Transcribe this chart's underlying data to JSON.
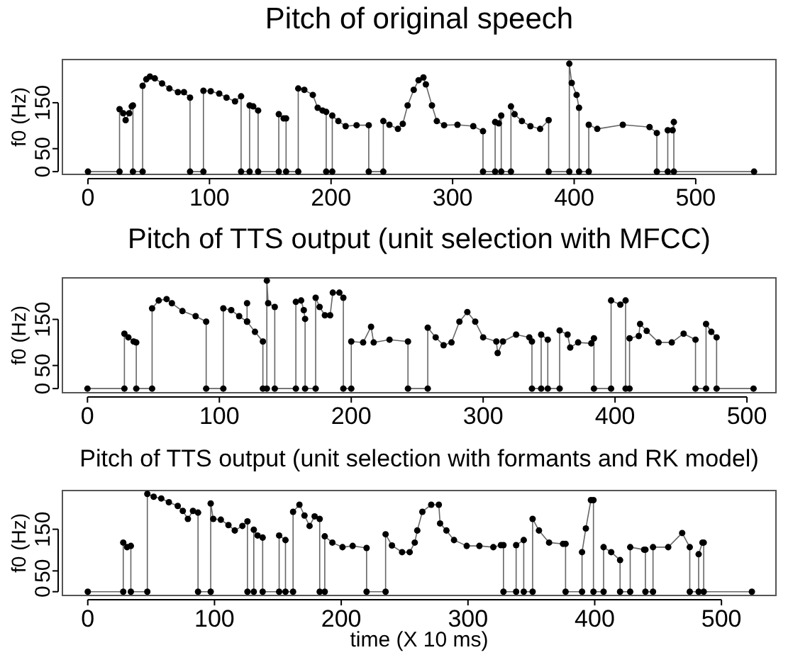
{
  "chart_data": [
    {
      "type": "line",
      "title": "Pitch of original speech",
      "ylabel": "f0 (Hz)",
      "marker": "circle",
      "line_style": "solid",
      "grid": false,
      "xlim": [
        -21,
        566
      ],
      "xticks": [
        0,
        100,
        200,
        300,
        400,
        500
      ],
      "ylim": [
        -6,
        244
      ],
      "yticks": [
        0,
        50,
        150
      ],
      "series": [
        {
          "color": "#000000",
          "x": [
            0,
            26,
            26,
            29,
            31,
            34,
            36,
            37,
            37,
            45,
            45,
            48,
            51,
            55,
            61,
            67,
            74,
            79,
            84,
            84,
            95,
            95,
            101,
            108,
            114,
            121,
            126,
            126,
            133,
            133,
            136,
            140,
            140,
            157,
            157,
            161,
            163,
            163,
            173,
            173,
            178,
            185,
            189,
            193,
            196,
            196,
            201,
            201,
            206,
            212,
            221,
            231,
            231,
            243,
            243,
            248,
            255,
            259,
            263,
            268,
            272,
            276,
            278,
            283,
            287,
            293,
            304,
            317,
            325,
            325,
            335,
            335,
            338,
            340,
            340,
            348,
            348,
            351,
            357,
            364,
            372,
            379,
            379,
            396,
            396,
            398,
            402,
            404,
            404,
            412,
            412,
            419,
            440,
            462,
            468,
            468,
            477,
            477,
            481,
            482,
            482,
            548
          ],
          "values": [
            0,
            0,
            136,
            127,
            112,
            127,
            142,
            144,
            0,
            0,
            187,
            201,
            207,
            203,
            192,
            181,
            173,
            173,
            161,
            0,
            0,
            176,
            175,
            170,
            161,
            153,
            164,
            0,
            0,
            144,
            142,
            133,
            0,
            0,
            125,
            116,
            116,
            0,
            0,
            181,
            178,
            167,
            139,
            133,
            130,
            0,
            0,
            122,
            110,
            99,
            101,
            101,
            0,
            0,
            110,
            102,
            93,
            104,
            144,
            178,
            199,
            205,
            190,
            144,
            110,
            101,
            102,
            99,
            88,
            0,
            0,
            108,
            105,
            122,
            0,
            0,
            142,
            125,
            110,
            99,
            93,
            112,
            0,
            0,
            235,
            193,
            167,
            139,
            0,
            0,
            102,
            93,
            102,
            97,
            84,
            0,
            0,
            90,
            90,
            108,
            0,
            0
          ]
        }
      ]
    },
    {
      "type": "line",
      "title": "Pitch of TTS output (unit selection with MFCC)",
      "ylabel": "f0 (Hz)",
      "marker": "circle",
      "line_style": "solid",
      "grid": false,
      "xlim": [
        -19,
        522
      ],
      "xticks": [
        0,
        100,
        200,
        300,
        400,
        500
      ],
      "ylim": [
        -9,
        240
      ],
      "yticks": [
        0,
        50,
        150
      ],
      "series": [
        {
          "color": "#000000",
          "x": [
            0,
            28,
            28,
            31,
            35,
            37,
            37,
            49,
            49,
            54,
            60,
            64,
            72,
            82,
            90,
            90,
            103,
            103,
            109,
            115,
            121,
            121,
            121,
            127,
            133,
            133,
            136,
            136,
            137,
            142,
            142,
            158,
            158,
            162,
            164,
            165,
            165,
            173,
            173,
            176,
            180,
            184,
            186,
            191,
            194,
            194,
            200,
            200,
            209,
            215,
            217,
            229,
            243,
            243,
            258,
            258,
            264,
            270,
            276,
            282,
            288,
            294,
            300,
            310,
            311,
            315,
            325,
            335,
            337,
            337,
            344,
            344,
            349,
            349,
            358,
            358,
            364,
            366,
            372,
            382,
            384,
            384,
            397,
            397,
            404,
            408,
            408,
            411,
            411,
            418,
            419,
            424,
            433,
            443,
            452,
            461,
            461,
            469,
            469,
            473,
            477,
            477,
            505
          ],
          "values": [
            0,
            0,
            119,
            111,
            102,
            100,
            0,
            0,
            174,
            191,
            194,
            185,
            168,
            157,
            145,
            0,
            0,
            174,
            170,
            157,
            145,
            185,
            145,
            123,
            102,
            0,
            0,
            234,
            185,
            177,
            0,
            0,
            188,
            191,
            170,
            151,
            0,
            0,
            197,
            177,
            159,
            159,
            208,
            208,
            197,
            0,
            0,
            102,
            100,
            134,
            100,
            106,
            102,
            0,
            0,
            132,
            111,
            94,
            100,
            145,
            166,
            145,
            111,
            102,
            77,
            102,
            117,
            111,
            102,
            0,
            0,
            117,
            106,
            0,
            0,
            126,
            117,
            89,
            100,
            98,
            109,
            0,
            0,
            191,
            182,
            191,
            0,
            0,
            109,
            114,
            140,
            125,
            100,
            100,
            119,
            106,
            0,
            0,
            140,
            123,
            111,
            0,
            0
          ]
        }
      ]
    },
    {
      "type": "line",
      "title": "Pitch of TTS output (unit selection with formants and RK model)",
      "xlabel": "time (X 10 ms)",
      "ylabel": "f0 (Hz)",
      "marker": "circle",
      "line_style": "solid",
      "grid": false,
      "xlim": [
        -20,
        543
      ],
      "xticks": [
        0,
        100,
        200,
        300,
        400,
        500
      ],
      "ylim": [
        -9,
        243
      ],
      "yticks": [
        0,
        50,
        150
      ],
      "series": [
        {
          "color": "#000000",
          "x": [
            0,
            28,
            28,
            31,
            34,
            34,
            47,
            47,
            52,
            58,
            64,
            71,
            75,
            79,
            83,
            87,
            87,
            97,
            97,
            99,
            105,
            111,
            116,
            122,
            126,
            126,
            131,
            131,
            134,
            138,
            138,
            151,
            151,
            156,
            156,
            162,
            162,
            167,
            171,
            175,
            179,
            183,
            183,
            187,
            187,
            193,
            201,
            209,
            220,
            220,
            235,
            235,
            240,
            248,
            254,
            258,
            260,
            264,
            271,
            277,
            278,
            283,
            289,
            299,
            309,
            320,
            326,
            328,
            328,
            338,
            338,
            344,
            344,
            351,
            351,
            356,
            364,
            375,
            377,
            377,
            390,
            390,
            393,
            397,
            399,
            399,
            407,
            407,
            413,
            420,
            420,
            428,
            428,
            439,
            440,
            440,
            446,
            446,
            458,
            469,
            475,
            475,
            482,
            482,
            485,
            486,
            486,
            524
          ],
          "values": [
            0,
            0,
            118,
            107,
            110,
            0,
            0,
            235,
            228,
            224,
            215,
            206,
            194,
            175,
            194,
            190,
            0,
            0,
            212,
            175,
            173,
            160,
            147,
            158,
            169,
            0,
            0,
            149,
            135,
            130,
            0,
            0,
            135,
            124,
            0,
            0,
            192,
            209,
            183,
            158,
            181,
            175,
            0,
            0,
            133,
            118,
            107,
            110,
            105,
            0,
            0,
            138,
            111,
            95,
            95,
            118,
            147,
            192,
            209,
            209,
            164,
            147,
            124,
            110,
            110,
            107,
            112,
            112,
            0,
            0,
            112,
            124,
            0,
            0,
            175,
            147,
            118,
            115,
            115,
            0,
            0,
            95,
            152,
            220,
            220,
            0,
            0,
            107,
            95,
            76,
            0,
            0,
            107,
            101,
            101,
            0,
            0,
            107,
            107,
            141,
            107,
            0,
            0,
            90,
            118,
            118,
            0,
            0
          ]
        }
      ]
    }
  ]
}
